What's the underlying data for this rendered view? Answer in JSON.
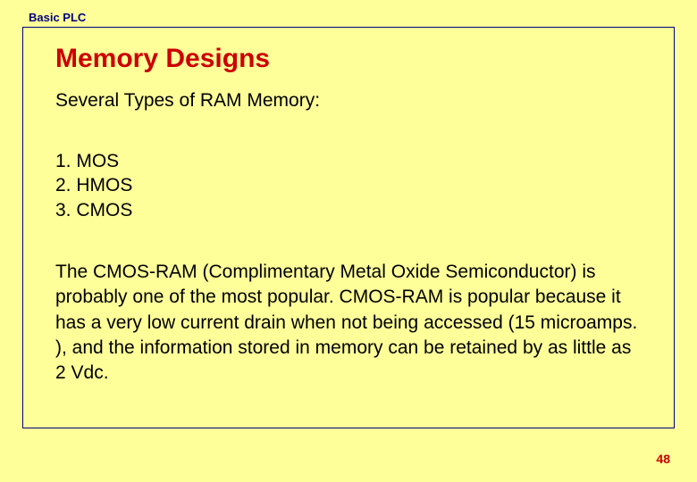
{
  "header": {
    "label": "Basic PLC"
  },
  "slide": {
    "title": "Memory Designs",
    "subtitle": "Several Types of RAM Memory:",
    "list_items": {
      "item1": "1. MOS",
      "item2": "2. HMOS",
      "item3": "3. CMOS"
    },
    "description": "The CMOS-RAM (Complimentary Metal Oxide Semiconductor) is probably one of the most popular. CMOS-RAM is popular because it has a very low current drain when not being accessed (15 microamps. ), and the information stored in memory can be retained by as little as 2 Vdc."
  },
  "page_number": "48",
  "colors": {
    "background": "#ffff99",
    "title_color": "#cc0000",
    "border_color": "#000080",
    "header_color": "#000080",
    "text_color": "#000000",
    "page_number_color": "#cc0000"
  },
  "typography": {
    "header_fontsize": 13,
    "title_fontsize": 30,
    "body_fontsize": 21,
    "page_number_fontsize": 14
  }
}
